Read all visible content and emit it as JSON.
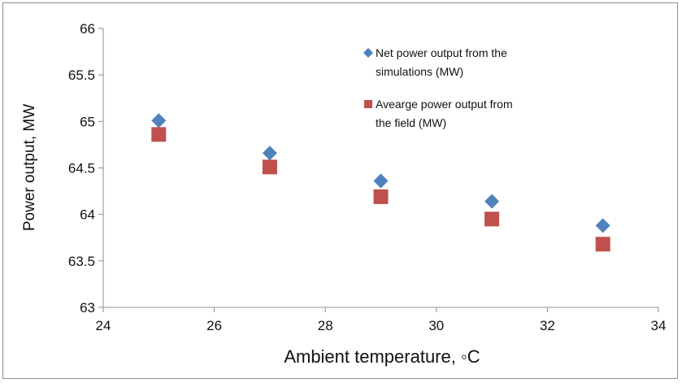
{
  "chart_data": {
    "type": "scatter",
    "xlabel": "Ambient temperature, ◦C",
    "ylabel": "Power output, MW",
    "xlim": [
      24,
      34
    ],
    "ylim": [
      63,
      66
    ],
    "x_ticks": [
      "24",
      "26",
      "28",
      "30",
      "32",
      "34"
    ],
    "y_ticks": [
      "63",
      "63.5",
      "64",
      "64.5",
      "65",
      "65.5",
      "66"
    ],
    "grid": false,
    "legend_position": "top-right",
    "series": [
      {
        "name": "Net power output from the simulations (MW)",
        "legend_lines": [
          "Net power output from the",
          "simulations (MW)"
        ],
        "marker": "diamond",
        "color": "#4f81bd",
        "x": [
          25,
          27,
          29,
          31,
          33
        ],
        "y": [
          65.01,
          64.66,
          64.36,
          64.14,
          63.88
        ]
      },
      {
        "name": "Avearge power output from the field (MW)",
        "legend_lines": [
          "Avearge power output from",
          "the field (MW)"
        ],
        "marker": "square",
        "color": "#c0504d",
        "x": [
          25,
          27,
          29,
          31,
          33
        ],
        "y": [
          64.86,
          64.51,
          64.19,
          63.95,
          63.68
        ]
      }
    ]
  }
}
